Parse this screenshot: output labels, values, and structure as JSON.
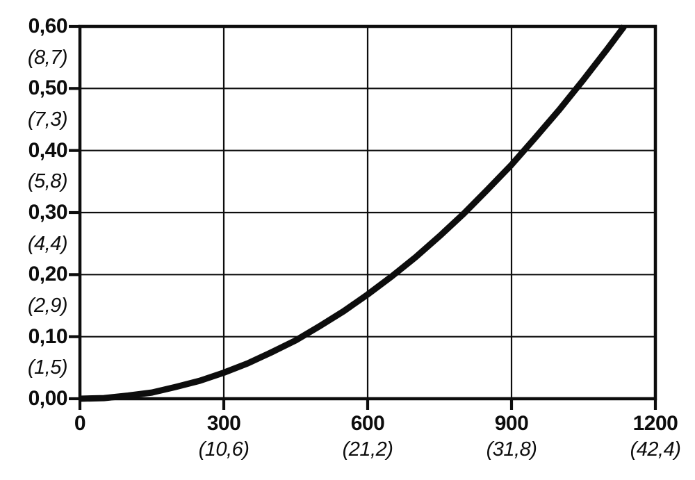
{
  "figure": {
    "background": "#ffffff",
    "ink_color": "#0d0d0d"
  },
  "chart_data": {
    "type": "line",
    "title": "",
    "xlabel": "",
    "ylabel": "",
    "xlim": [
      0,
      1200
    ],
    "ylim": [
      0,
      0.6
    ],
    "grid": true,
    "grid_x_step": 300,
    "grid_y_step": 0.1,
    "legend": "none",
    "x_ticks": [
      {
        "value": 0,
        "label": "0",
        "sub": ""
      },
      {
        "value": 300,
        "label": "300",
        "sub": "(10,6)"
      },
      {
        "value": 600,
        "label": "600",
        "sub": "(21,2)"
      },
      {
        "value": 900,
        "label": "900",
        "sub": "(31,8)"
      },
      {
        "value": 1200,
        "label": "1200",
        "sub": "(42,4)"
      }
    ],
    "y_ticks": [
      {
        "value": 0.0,
        "label": "0,00",
        "sub": ""
      },
      {
        "value": 0.1,
        "label": "0,10",
        "sub": "(1,5)"
      },
      {
        "value": 0.2,
        "label": "0,20",
        "sub": "(2,9)"
      },
      {
        "value": 0.3,
        "label": "0,30",
        "sub": "(4,4)"
      },
      {
        "value": 0.4,
        "label": "0,40",
        "sub": "(5,8)"
      },
      {
        "value": 0.5,
        "label": "0,50",
        "sub": "(7,3)"
      },
      {
        "value": 0.6,
        "label": "0,60",
        "sub": "(8,7)"
      }
    ],
    "series": [
      {
        "name": "curve",
        "color": "#0d0d0d",
        "width": 9,
        "points": [
          [
            0,
            0.0
          ],
          [
            50,
            0.001
          ],
          [
            100,
            0.005
          ],
          [
            150,
            0.01
          ],
          [
            200,
            0.019
          ],
          [
            250,
            0.029
          ],
          [
            300,
            0.042
          ],
          [
            350,
            0.057
          ],
          [
            400,
            0.075
          ],
          [
            450,
            0.094
          ],
          [
            500,
            0.117
          ],
          [
            550,
            0.141
          ],
          [
            600,
            0.168
          ],
          [
            650,
            0.197
          ],
          [
            700,
            0.228
          ],
          [
            750,
            0.262
          ],
          [
            800,
            0.298
          ],
          [
            850,
            0.337
          ],
          [
            900,
            0.377
          ],
          [
            950,
            0.421
          ],
          [
            1000,
            0.466
          ],
          [
            1050,
            0.514
          ],
          [
            1100,
            0.564
          ],
          [
            1135,
            0.6
          ]
        ]
      }
    ]
  }
}
